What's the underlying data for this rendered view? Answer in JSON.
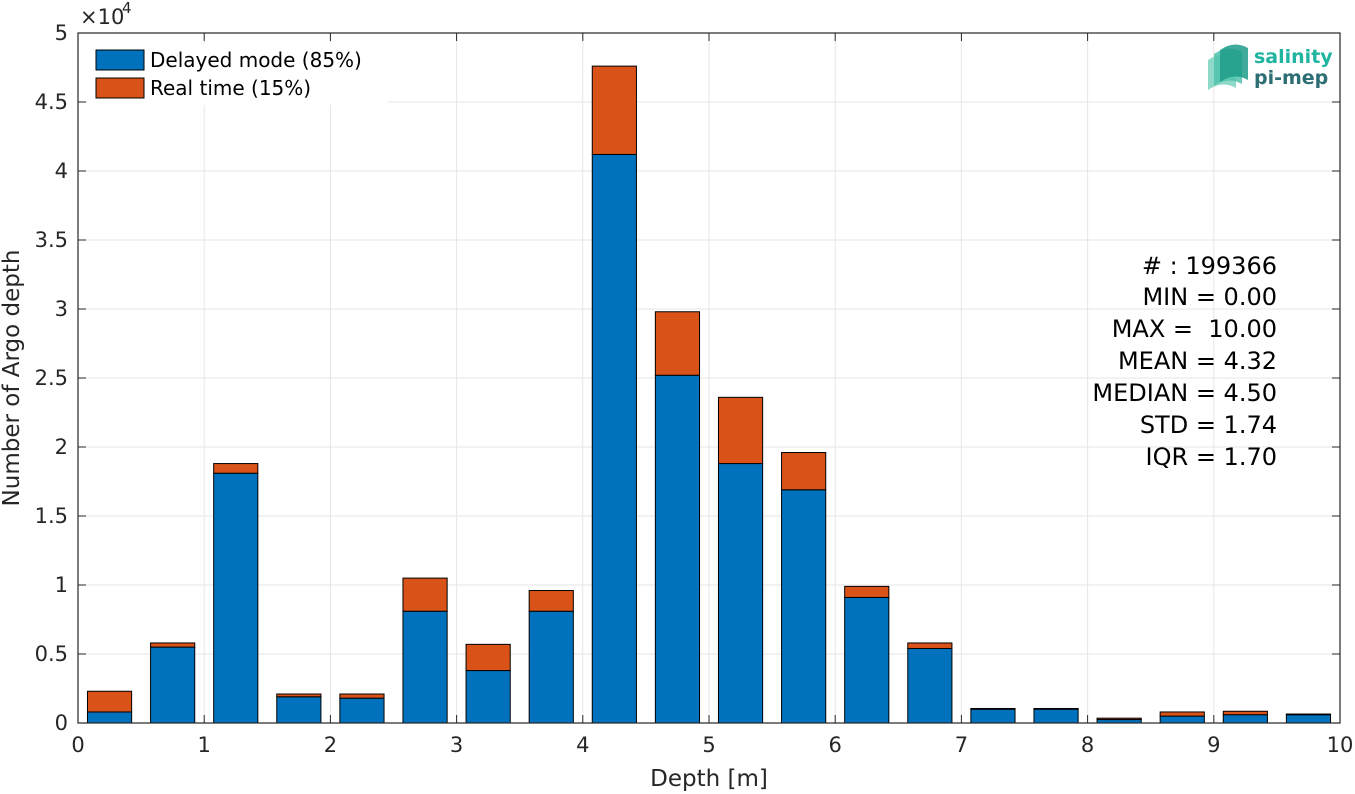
{
  "chart_data": {
    "type": "bar",
    "stacked": true,
    "xlabel": "Depth [m]",
    "ylabel": "Number of Argo depth",
    "y_exponent_label": "×10",
    "y_exponent_power": "4",
    "xlim": [
      0,
      10
    ],
    "ylim": [
      0,
      50000
    ],
    "x_ticks": [
      0,
      1,
      2,
      3,
      4,
      5,
      6,
      7,
      8,
      9,
      10
    ],
    "x_tick_labels": [
      "0",
      "1",
      "2",
      "3",
      "4",
      "5",
      "6",
      "7",
      "8",
      "9",
      "10"
    ],
    "y_ticks": [
      0,
      5000,
      10000,
      15000,
      20000,
      25000,
      30000,
      35000,
      40000,
      45000,
      50000
    ],
    "y_tick_labels": [
      "0",
      "0.5",
      "1",
      "1.5",
      "2",
      "2.5",
      "3",
      "3.5",
      "4",
      "4.5",
      "5"
    ],
    "grid": true,
    "bar_width": 0.35,
    "x": [
      0.25,
      0.75,
      1.25,
      1.75,
      2.25,
      2.75,
      3.25,
      3.75,
      4.25,
      4.75,
      5.25,
      5.75,
      6.25,
      6.75,
      7.25,
      7.75,
      8.25,
      8.75,
      9.25,
      9.75
    ],
    "series": [
      {
        "name": "Delayed mode (85%)",
        "color": "#0072BD",
        "values": [
          800,
          5500,
          18100,
          1900,
          1800,
          8100,
          3800,
          8100,
          41200,
          25200,
          18800,
          16900,
          9100,
          5400,
          1000,
          1000,
          250,
          500,
          600,
          600
        ]
      },
      {
        "name": "Real time (15%)",
        "color": "#D95319",
        "values": [
          1500,
          300,
          700,
          200,
          300,
          2400,
          1900,
          1500,
          6400,
          4600,
          4800,
          2700,
          800,
          400,
          50,
          50,
          100,
          300,
          250,
          50
        ]
      }
    ],
    "legend_position": "top-left",
    "stats_lines": [
      "# : 199366",
      "MIN = 0.00",
      "MAX =  10.00",
      "MEAN = 4.32",
      "MEDIAN = 4.50",
      "STD = 1.74",
      "IQR = 1.70"
    ]
  },
  "logo": {
    "line1": "salinity",
    "line2": "pi-mep",
    "color1": "#1fb5a0",
    "color2": "#2c6e73"
  }
}
